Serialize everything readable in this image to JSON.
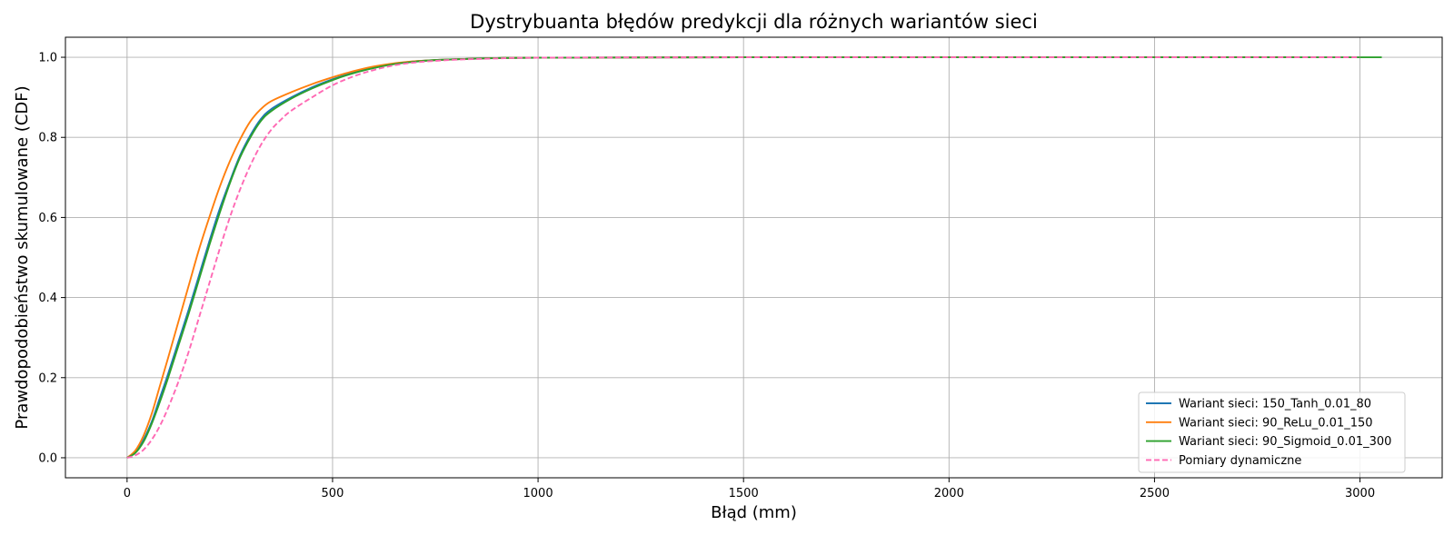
{
  "chart_data": {
    "type": "line",
    "title": "Dystrybuanta błędów predykcji dla różnych wariantów sieci",
    "xlabel": "Błąd (mm)",
    "ylabel": "Prawdopodobieństwo skumulowane (CDF)",
    "xlim": [
      -150,
      3200
    ],
    "ylim": [
      -0.05,
      1.05
    ],
    "xticks": [
      0,
      500,
      1000,
      1500,
      2000,
      2500,
      3000
    ],
    "xtick_labels": [
      "0",
      "500",
      "1000",
      "1500",
      "2000",
      "2500",
      "3000"
    ],
    "yticks": [
      0.0,
      0.2,
      0.4,
      0.6,
      0.8,
      1.0
    ],
    "ytick_labels": [
      "0.0",
      "0.2",
      "0.4",
      "0.6",
      "0.8",
      "1.0"
    ],
    "grid": true,
    "legend_position": "lower-right",
    "series": [
      {
        "name": "Wariant sieci: 150_Tanh_0.01_80",
        "color": "#1f77b4",
        "dash": "solid",
        "x": [
          0,
          20,
          40,
          60,
          80,
          100,
          125,
          150,
          175,
          200,
          225,
          250,
          275,
          300,
          325,
          350,
          400,
          450,
          500,
          550,
          600,
          650,
          700,
          750,
          800,
          900,
          1000,
          1500,
          2000,
          2500,
          2850
        ],
        "y": [
          0.0,
          0.015,
          0.045,
          0.09,
          0.15,
          0.21,
          0.29,
          0.37,
          0.455,
          0.54,
          0.62,
          0.69,
          0.755,
          0.805,
          0.845,
          0.87,
          0.9,
          0.925,
          0.945,
          0.962,
          0.975,
          0.984,
          0.99,
          0.993,
          0.995,
          0.998,
          0.999,
          1.0,
          1.0,
          1.0,
          1.0
        ]
      },
      {
        "name": "Wariant sieci: 90_ReLu_0.01_150",
        "color": "#ff7f0e",
        "dash": "solid",
        "x": [
          0,
          20,
          40,
          60,
          80,
          100,
          125,
          150,
          175,
          200,
          225,
          250,
          275,
          300,
          325,
          350,
          400,
          450,
          500,
          550,
          600,
          650,
          700,
          750,
          800,
          900,
          1000,
          1500,
          2000,
          2500,
          2850
        ],
        "y": [
          0.0,
          0.018,
          0.055,
          0.11,
          0.18,
          0.25,
          0.34,
          0.43,
          0.52,
          0.6,
          0.675,
          0.74,
          0.795,
          0.84,
          0.87,
          0.89,
          0.913,
          0.933,
          0.95,
          0.965,
          0.977,
          0.985,
          0.99,
          0.993,
          0.995,
          0.998,
          0.999,
          1.0,
          1.0,
          1.0,
          1.0
        ]
      },
      {
        "name": "Wariant sieci: 90_Sigmoid_0.01_300",
        "color": "#2ca02c",
        "dash": "solid",
        "x": [
          0,
          20,
          40,
          60,
          80,
          100,
          125,
          150,
          175,
          200,
          225,
          250,
          275,
          300,
          325,
          350,
          400,
          450,
          500,
          550,
          600,
          650,
          700,
          750,
          800,
          900,
          1000,
          1500,
          2000,
          2500,
          3000,
          3040
        ],
        "y": [
          0.0,
          0.012,
          0.04,
          0.085,
          0.14,
          0.2,
          0.28,
          0.36,
          0.445,
          0.53,
          0.61,
          0.685,
          0.75,
          0.8,
          0.84,
          0.865,
          0.897,
          0.922,
          0.943,
          0.96,
          0.973,
          0.983,
          0.989,
          0.993,
          0.995,
          0.998,
          0.999,
          1.0,
          1.0,
          1.0,
          1.0,
          1.0
        ]
      },
      {
        "name": "Pomiary dynamiczne",
        "color": "#ff69b4",
        "dash": "dashed",
        "x": [
          0,
          20,
          40,
          60,
          80,
          100,
          125,
          150,
          175,
          200,
          225,
          250,
          275,
          300,
          325,
          350,
          375,
          400,
          450,
          500,
          550,
          600,
          650,
          700,
          750,
          800,
          900,
          1000,
          1500,
          2000,
          2500,
          3000
        ],
        "y": [
          0.0,
          0.006,
          0.02,
          0.045,
          0.08,
          0.125,
          0.19,
          0.265,
          0.35,
          0.435,
          0.52,
          0.6,
          0.67,
          0.73,
          0.78,
          0.818,
          0.845,
          0.867,
          0.9,
          0.93,
          0.952,
          0.968,
          0.98,
          0.987,
          0.991,
          0.994,
          0.997,
          0.999,
          1.0,
          1.0,
          1.0,
          1.0
        ]
      }
    ]
  }
}
